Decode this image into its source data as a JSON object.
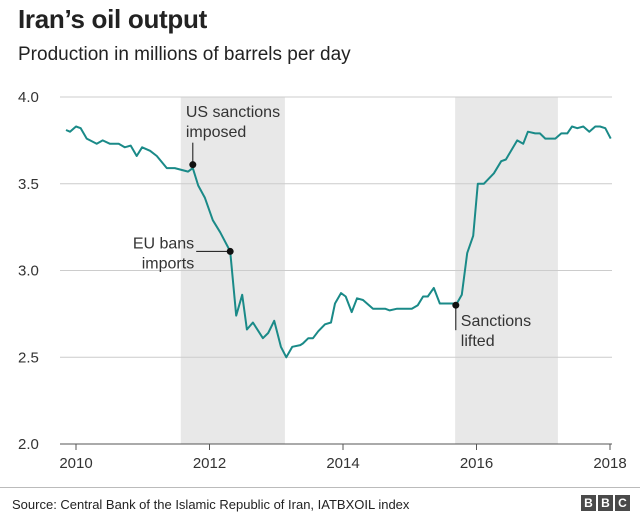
{
  "chart_data": {
    "type": "line",
    "title": "Iran’s oil output",
    "subtitle": "Production in millions of barrels per day",
    "xlabel": "",
    "ylabel": "",
    "xlim": [
      2009.8,
      2018.1
    ],
    "ylim": [
      2.0,
      4.0
    ],
    "x_ticks": [
      "2010",
      "2012",
      "2014",
      "2016",
      "2018"
    ],
    "y_ticks": [
      "2.0",
      "2.5",
      "3.0",
      "3.5",
      "4.0"
    ],
    "grid": "horizontal",
    "line_color": "#1a8a88",
    "shade_color": "#e8e8e8",
    "shaded_periods": [
      [
        2011.57,
        2013.13
      ],
      [
        2015.68,
        2017.22
      ]
    ],
    "series": [
      {
        "x": [
          2009.85,
          2009.91,
          2010.0,
          2010.07,
          2010.16,
          2010.31,
          2010.4,
          2010.51,
          2010.64,
          2010.73,
          2010.82,
          2010.91,
          2010.99,
          2011.11,
          2011.21,
          2011.36,
          2011.48,
          2011.68,
          2011.75,
          2011.83,
          2011.93,
          2012.05,
          2012.16,
          2012.31,
          2012.4,
          2012.49,
          2012.56,
          2012.65,
          2012.8,
          2012.88,
          2012.97,
          2013.07,
          2013.15,
          2013.24,
          2013.36,
          2013.4,
          2013.48,
          2013.55,
          2013.63,
          2013.73,
          2013.82,
          2013.88,
          2013.97,
          2014.04,
          2014.13,
          2014.21,
          2014.3,
          2014.45,
          2014.63,
          2014.7,
          2014.81,
          2015.03,
          2015.12,
          2015.2,
          2015.27,
          2015.36,
          2015.45,
          2015.65,
          2015.69,
          2015.78,
          2015.86,
          2015.95,
          2016.02,
          2016.11,
          2016.26,
          2016.37,
          2016.44,
          2016.61,
          2016.7,
          2016.77,
          2016.88,
          2016.95,
          2017.03,
          2017.18,
          2017.27,
          2017.36,
          2017.43,
          2017.51,
          2017.6,
          2017.69,
          2017.78,
          2017.85,
          2017.93,
          2018.01
        ],
        "y": [
          3.81,
          3.8,
          3.83,
          3.82,
          3.76,
          3.73,
          3.75,
          3.73,
          3.73,
          3.71,
          3.72,
          3.66,
          3.71,
          3.69,
          3.66,
          3.59,
          3.59,
          3.57,
          3.59,
          3.49,
          3.42,
          3.29,
          3.22,
          3.11,
          2.74,
          2.86,
          2.66,
          2.7,
          2.61,
          2.64,
          2.71,
          2.56,
          2.5,
          2.56,
          2.57,
          2.58,
          2.61,
          2.61,
          2.65,
          2.69,
          2.7,
          2.81,
          2.87,
          2.85,
          2.76,
          2.84,
          2.83,
          2.78,
          2.78,
          2.77,
          2.78,
          2.78,
          2.8,
          2.85,
          2.85,
          2.9,
          2.81,
          2.81,
          2.8,
          2.86,
          3.1,
          3.2,
          3.5,
          3.5,
          3.56,
          3.63,
          3.64,
          3.75,
          3.73,
          3.8,
          3.79,
          3.79,
          3.76,
          3.76,
          3.79,
          3.79,
          3.83,
          3.82,
          3.83,
          3.8,
          3.83,
          3.83,
          3.82,
          3.76
        ]
      }
    ],
    "annotations": [
      {
        "lines": [
          "US sanctions",
          "imposed"
        ],
        "x": 2011.75,
        "y": 3.61
      },
      {
        "lines": [
          "EU bans",
          "imports"
        ],
        "x": 2012.31,
        "y": 3.11
      },
      {
        "lines": [
          "Sanctions",
          "lifted"
        ],
        "x": 2015.69,
        "y": 2.8
      }
    ]
  },
  "footer": {
    "source": "Source: Central Bank of the Islamic Republic of Iran, IATBXOIL index",
    "logo": "BBC"
  }
}
